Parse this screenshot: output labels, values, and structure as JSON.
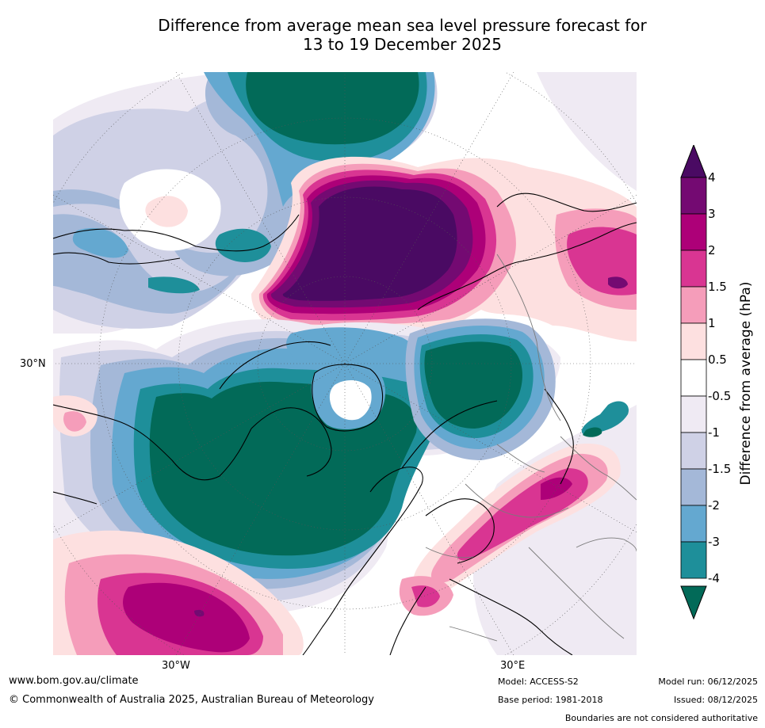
{
  "title": {
    "line1": "Difference from average mean sea level pressure forecast for",
    "line2": "13 to 19 December 2025"
  },
  "map": {
    "projection": "north-polar-stereographic",
    "labels": {
      "lat_30n": "30°N",
      "lon_30w": "30°W",
      "lon_30e": "30°E"
    }
  },
  "legend": {
    "title": "Difference from average (hPa)",
    "ticks": [
      "4",
      "3",
      "2",
      "1.5",
      "1",
      "0.5",
      "-0.5",
      "-1",
      "-1.5",
      "-2",
      "-3",
      "-4"
    ],
    "colors": {
      "above_4": "#4a0a63",
      "3_to_4": "#740a72",
      "2_to_3": "#ad0078",
      "1.5_to_2": "#d93592",
      "1_to_1.5": "#f59dba",
      "0.5_to_1": "#fde0e0",
      "neutral": "#ffffff",
      "-1_to_-0.5": "#efeaf3",
      "-1.5_to_-1": "#cfd1e6",
      "-2_to_-1.5": "#a4b8d8",
      "-3_to_-2": "#64a8d0",
      "-4_to_-3": "#1e8f9a",
      "below_-4": "#026a58"
    }
  },
  "footer": {
    "url": "www.bom.gov.au/climate",
    "copyright": "© Commonwealth of Australia 2025, Australian Bureau of Meteorology",
    "model": "Model: ACCESS-S2",
    "base_period": "Base period: 1981-2018",
    "model_run": "Model run: 06/12/2025",
    "issued": "Issued: 08/12/2025",
    "disclaimer": "Boundaries are not considered authoritative"
  }
}
